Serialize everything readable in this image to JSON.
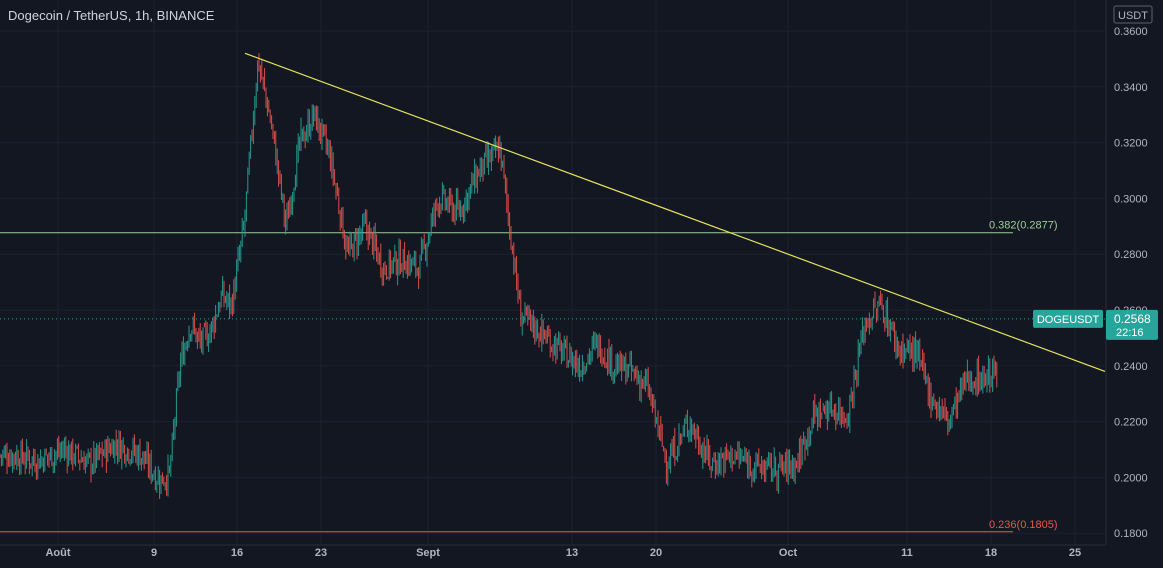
{
  "header": {
    "title": "Dogecoin / TetherUS, 1h, BINANCE"
  },
  "price_axis": {
    "currency_label": "USDT"
  },
  "current_price": {
    "symbol": "DOGEUSDT",
    "price": "0.2568",
    "countdown": "22:16"
  },
  "colors": {
    "background": "#131722",
    "up": "#26a69a",
    "down": "#ef5350",
    "trendline": "#e6e35a",
    "fib_382": "#9ccc9a",
    "fib_236": "#ef5350",
    "price_tag": "#26a69a",
    "axis_text": "#b2b5be"
  },
  "chart_data": {
    "type": "candlestick",
    "symbol": "DOGEUSDT",
    "exchange": "BINANCE",
    "interval": "1h",
    "ylim": [
      0.1775,
      0.3625
    ],
    "ylabel": "USDT",
    "y_ticks": [
      "0.3600",
      "0.3400",
      "0.3200",
      "0.3000",
      "0.2800",
      "0.2600",
      "0.2400",
      "0.2200",
      "0.2000",
      "0.1800"
    ],
    "x_ticks": [
      "Août",
      "9",
      "16",
      "23",
      "Sept",
      "13",
      "20",
      "Oct",
      "11",
      "18",
      "25"
    ],
    "price_path": [
      [
        "Août",
        0.208
      ],
      [
        "Août",
        0.206
      ],
      [
        "Août",
        0.21
      ],
      [
        "Août",
        0.205
      ],
      [
        "Août",
        0.212
      ],
      [
        "Août",
        0.208
      ],
      [
        "9",
        0.199
      ],
      [
        "9",
        0.201
      ],
      [
        "9",
        0.24
      ],
      [
        "9",
        0.255
      ],
      [
        "9",
        0.248
      ],
      [
        "9",
        0.253
      ],
      [
        "9",
        0.265
      ],
      [
        "9",
        0.262
      ],
      [
        "16",
        0.29
      ],
      [
        "16",
        0.35
      ],
      [
        "16",
        0.325
      ],
      [
        "16",
        0.29
      ],
      [
        "16",
        0.32
      ],
      [
        "16",
        0.33
      ],
      [
        "23",
        0.315
      ],
      [
        "23",
        0.28
      ],
      [
        "23",
        0.29
      ],
      [
        "23",
        0.275
      ],
      [
        "23",
        0.278
      ],
      [
        "23",
        0.275
      ],
      [
        "Sept",
        0.3
      ],
      [
        "Sept",
        0.295
      ],
      [
        "Sept",
        0.31
      ],
      [
        "Sept",
        0.318
      ],
      [
        "Sept",
        0.258
      ],
      [
        "Sept",
        0.252
      ],
      [
        "Sept",
        0.245
      ],
      [
        "13",
        0.24
      ],
      [
        "13",
        0.248
      ],
      [
        "13",
        0.24
      ],
      [
        "13",
        0.238
      ],
      [
        "13",
        0.232
      ],
      [
        "20",
        0.205
      ],
      [
        "20",
        0.22
      ],
      [
        "20",
        0.205
      ],
      [
        "20",
        0.208
      ],
      [
        "20",
        0.204
      ],
      [
        "20",
        0.203
      ],
      [
        "Oct",
        0.205
      ],
      [
        "Oct",
        0.222
      ],
      [
        "Oct",
        0.225
      ],
      [
        "Oct",
        0.222
      ],
      [
        "Oct",
        0.255
      ],
      [
        "Oct",
        0.262
      ],
      [
        "Oct",
        0.246
      ],
      [
        "11",
        0.245
      ],
      [
        "11",
        0.228
      ],
      [
        "11",
        0.22
      ],
      [
        "11",
        0.235
      ],
      [
        "11",
        0.236
      ],
      [
        "18",
        0.238
      ],
      [
        "18",
        0.25
      ],
      [
        "18",
        0.2568
      ]
    ],
    "annotations": {
      "trendline": {
        "from": [
          "16",
          0.352
        ],
        "to": [
          "25",
          0.238
        ]
      },
      "fib_levels": [
        {
          "label": "0.382(0.2877)",
          "value": 0.2877
        },
        {
          "label": "0.236(0.1805)",
          "value": 0.1805
        }
      ],
      "last_price": 0.2568
    }
  }
}
